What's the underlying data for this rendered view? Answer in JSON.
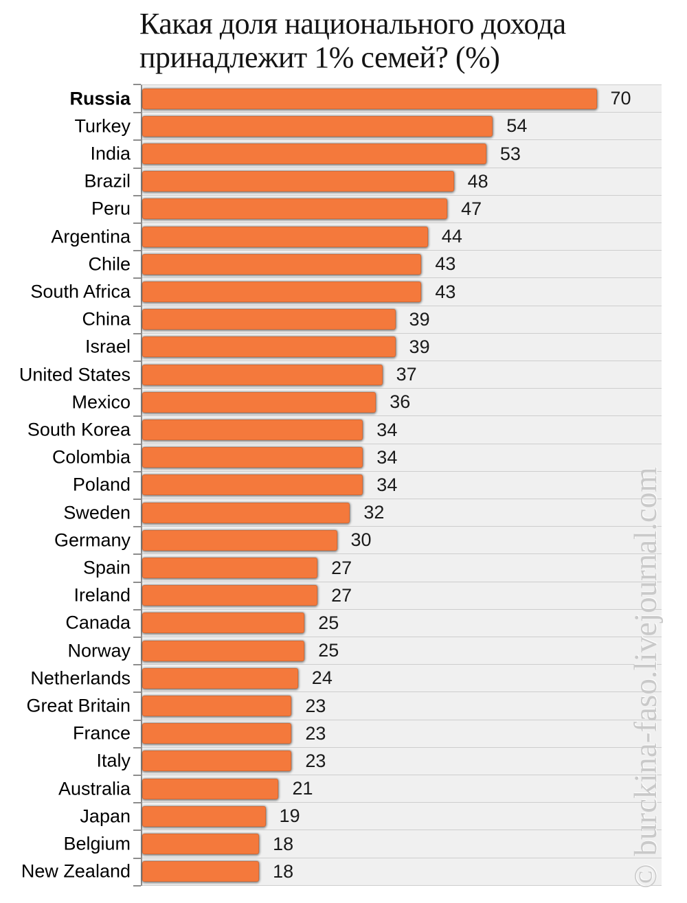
{
  "chart_data": {
    "type": "bar",
    "orientation": "horizontal",
    "title": "Какая доля национального дохода принадлежит 1% семей? (%)",
    "title_lines": [
      "Какая доля национального дохода",
      "принадлежит 1% семей? (%)"
    ],
    "xlabel": "",
    "ylabel": "",
    "xlim": [
      0,
      80
    ],
    "grid": "horizontal row separators, no vertical gridlines, ticks on left axis",
    "legend": "none",
    "bar_color": "#f4793c",
    "plot_background": "#f0f0f0",
    "gridline_color": "#cdcdcd",
    "axis_color": "#8c8c8c",
    "highlight_category": "Russia",
    "categories": [
      "Russia",
      "Turkey",
      "India",
      "Brazil",
      "Peru",
      "Argentina",
      "Chile",
      "South Africa",
      "China",
      "Israel",
      "United States",
      "Mexico",
      "South Korea",
      "Colombia",
      "Poland",
      "Sweden",
      "Germany",
      "Spain",
      "Ireland",
      "Canada",
      "Norway",
      "Netherlands",
      "Great Britain",
      "France",
      "Italy",
      "Australia",
      "Japan",
      "Belgium",
      "New Zealand"
    ],
    "values": [
      70,
      54,
      53,
      48,
      47,
      44,
      43,
      43,
      39,
      39,
      37,
      36,
      34,
      34,
      34,
      32,
      30,
      27,
      27,
      25,
      25,
      24,
      23,
      23,
      23,
      21,
      19,
      18,
      18
    ]
  },
  "watermark": "© burckina-faso.livejournal.com",
  "watermark_color": "#c9c9c9"
}
